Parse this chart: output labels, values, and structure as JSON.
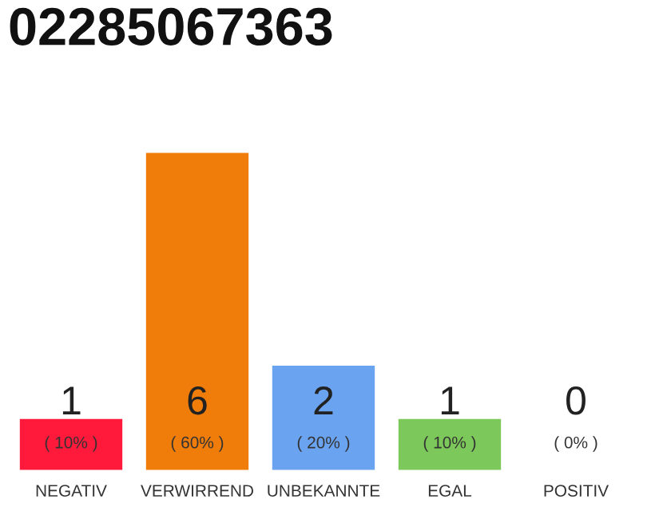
{
  "chart_data": {
    "type": "bar",
    "title": "02285067363",
    "categories": [
      "NEGATIV",
      "VERWIRREND",
      "UNBEKANNTE",
      "EGAL",
      "POSITIV"
    ],
    "values": [
      1,
      6,
      2,
      1,
      0
    ],
    "colors": [
      "#ff1a3c",
      "#f07d0a",
      "#6aa3f0",
      "#7dc85a",
      null
    ],
    "value_labels": [
      "1\n( 10% )",
      "6\n( 60% )",
      "2\n( 20% )",
      "1\n( 10% )",
      "0\n( 0% )"
    ],
    "grid": false,
    "legend": false
  }
}
